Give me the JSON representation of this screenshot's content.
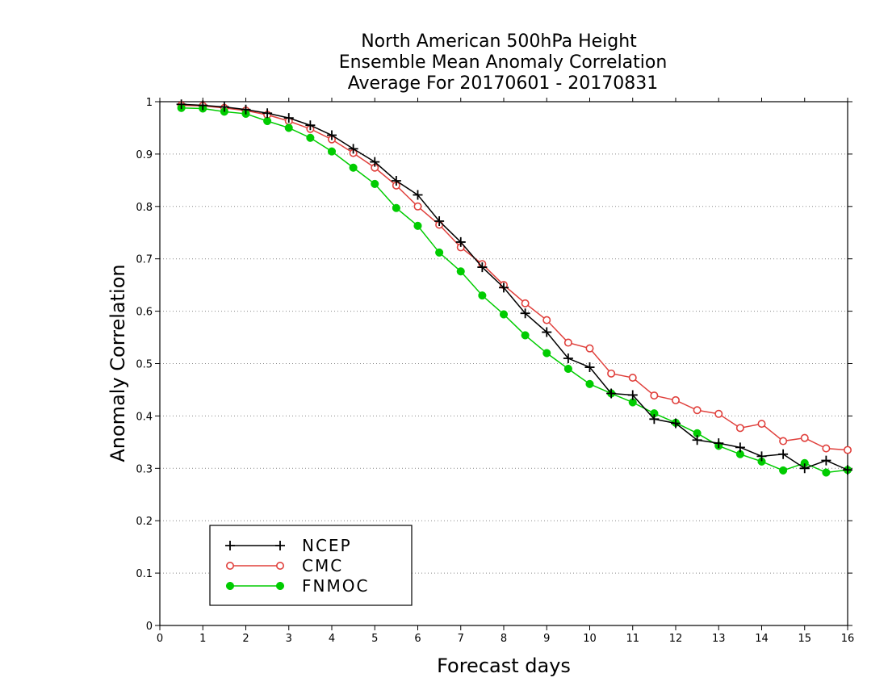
{
  "chart_data": {
    "type": "line",
    "title": [
      "North American 500hPa Height",
      "Ensemble Mean Anomaly Correlation",
      "Average For 20170601 - 20170831"
    ],
    "xlabel": "Forecast days",
    "ylabel": "Anomaly Correlation",
    "xlim": [
      0,
      16
    ],
    "ylim": [
      0,
      1
    ],
    "xticks": [
      0,
      1,
      2,
      3,
      4,
      5,
      6,
      7,
      8,
      9,
      10,
      11,
      12,
      13,
      14,
      15,
      16
    ],
    "yticks": [
      0,
      0.1,
      0.2,
      0.3,
      0.4,
      0.5,
      0.6,
      0.7,
      0.8,
      0.9,
      1
    ],
    "ytick_labels": [
      "0",
      "0.1",
      "0.2",
      "0.3",
      "0.4",
      "0.5",
      "0.6",
      "0.7",
      "0.8",
      "0.9",
      "1"
    ],
    "xtick_labels": [
      "0",
      "1",
      "2",
      "3",
      "4",
      "5",
      "6",
      "7",
      "8",
      "9",
      "10",
      "11",
      "12",
      "13",
      "14",
      "15",
      "16"
    ],
    "grid": "horizontal dotted",
    "legend_position": "bottom-left",
    "x": [
      0.5,
      1,
      1.5,
      2,
      2.5,
      3,
      3.5,
      4,
      4.5,
      5,
      5.5,
      6,
      6.5,
      7,
      7.5,
      8,
      8.5,
      9,
      9.5,
      10,
      10.5,
      11,
      11.5,
      12,
      12.5,
      13,
      13.5,
      14,
      14.5,
      15,
      15.5,
      16
    ],
    "series": [
      {
        "name": "NCEP",
        "color": "#000000",
        "marker": "plus",
        "values": [
          0.995,
          0.993,
          0.99,
          0.985,
          0.978,
          0.969,
          0.955,
          0.936,
          0.91,
          0.885,
          0.849,
          0.822,
          0.772,
          0.732,
          0.684,
          0.645,
          0.596,
          0.56,
          0.51,
          0.493,
          0.443,
          0.44,
          0.394,
          0.386,
          0.354,
          0.348,
          0.34,
          0.323,
          0.327,
          0.3,
          0.315,
          0.297
        ]
      },
      {
        "name": "CMC",
        "color": "#e0403c",
        "marker": "open-circle",
        "values": [
          0.993,
          0.992,
          0.988,
          0.983,
          0.975,
          0.963,
          0.948,
          0.928,
          0.902,
          0.874,
          0.84,
          0.8,
          0.765,
          0.722,
          0.69,
          0.65,
          0.615,
          0.583,
          0.54,
          0.529,
          0.481,
          0.473,
          0.439,
          0.43,
          0.411,
          0.404,
          0.377,
          0.385,
          0.352,
          0.358,
          0.338,
          0.335
        ]
      },
      {
        "name": "FNMOC",
        "color": "#00cc00",
        "marker": "filled-circle",
        "values": [
          0.988,
          0.987,
          0.981,
          0.977,
          0.963,
          0.95,
          0.931,
          0.905,
          0.874,
          0.843,
          0.797,
          0.763,
          0.712,
          0.676,
          0.63,
          0.594,
          0.554,
          0.52,
          0.49,
          0.461,
          0.443,
          0.426,
          0.405,
          0.387,
          0.367,
          0.343,
          0.327,
          0.313,
          0.296,
          0.31,
          0.292,
          0.297
        ]
      }
    ]
  }
}
